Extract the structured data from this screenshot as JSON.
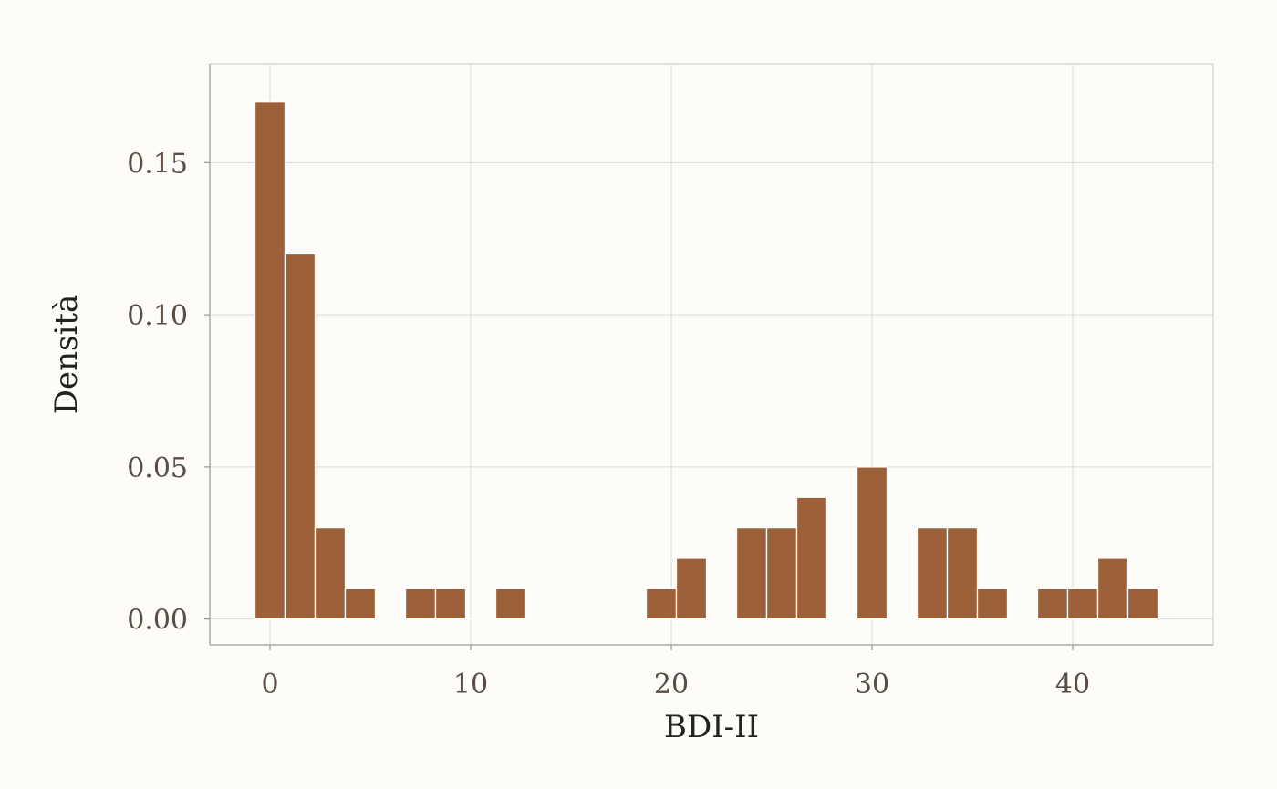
{
  "chart_data": {
    "type": "bar",
    "subtype": "histogram",
    "xlabel": "BDI-II",
    "ylabel": "Densità",
    "xlim": [
      -3,
      47
    ],
    "ylim": [
      -0.0085,
      0.1825
    ],
    "x_ticks": [
      0,
      10,
      20,
      30,
      40
    ],
    "x_tick_labels": [
      "0",
      "10",
      "20",
      "30",
      "40"
    ],
    "y_ticks": [
      0,
      0.05,
      0.1,
      0.15
    ],
    "y_tick_labels": [
      "0.00",
      "0.05",
      "0.10",
      "0.15"
    ],
    "grid": true,
    "bar_color": "#9a5e34",
    "bar_edge_color": "#ffffff",
    "bins": [
      {
        "x": 0,
        "density": 0.17
      },
      {
        "x": 1.5,
        "density": 0.12
      },
      {
        "x": 3,
        "density": 0.03
      },
      {
        "x": 4.5,
        "density": 0.01
      },
      {
        "x": 6,
        "density": 0
      },
      {
        "x": 7.5,
        "density": 0.01
      },
      {
        "x": 9,
        "density": 0.01
      },
      {
        "x": 10.5,
        "density": 0
      },
      {
        "x": 12,
        "density": 0.01
      },
      {
        "x": 13.5,
        "density": 0
      },
      {
        "x": 15,
        "density": 0
      },
      {
        "x": 16.5,
        "density": 0
      },
      {
        "x": 18,
        "density": 0
      },
      {
        "x": 19.5,
        "density": 0.01
      },
      {
        "x": 21,
        "density": 0.02
      },
      {
        "x": 22.5,
        "density": 0
      },
      {
        "x": 24,
        "density": 0.03
      },
      {
        "x": 25.5,
        "density": 0.03
      },
      {
        "x": 27,
        "density": 0.04
      },
      {
        "x": 28.5,
        "density": 0
      },
      {
        "x": 30,
        "density": 0.05
      },
      {
        "x": 31.5,
        "density": 0
      },
      {
        "x": 33,
        "density": 0.03
      },
      {
        "x": 34.5,
        "density": 0.03
      },
      {
        "x": 36,
        "density": 0.01
      },
      {
        "x": 37.5,
        "density": 0
      },
      {
        "x": 39,
        "density": 0.01
      },
      {
        "x": 40.5,
        "density": 0.01
      },
      {
        "x": 42,
        "density": 0.02
      },
      {
        "x": 43.5,
        "density": 0.01
      }
    ],
    "bin_width": 1.5
  }
}
